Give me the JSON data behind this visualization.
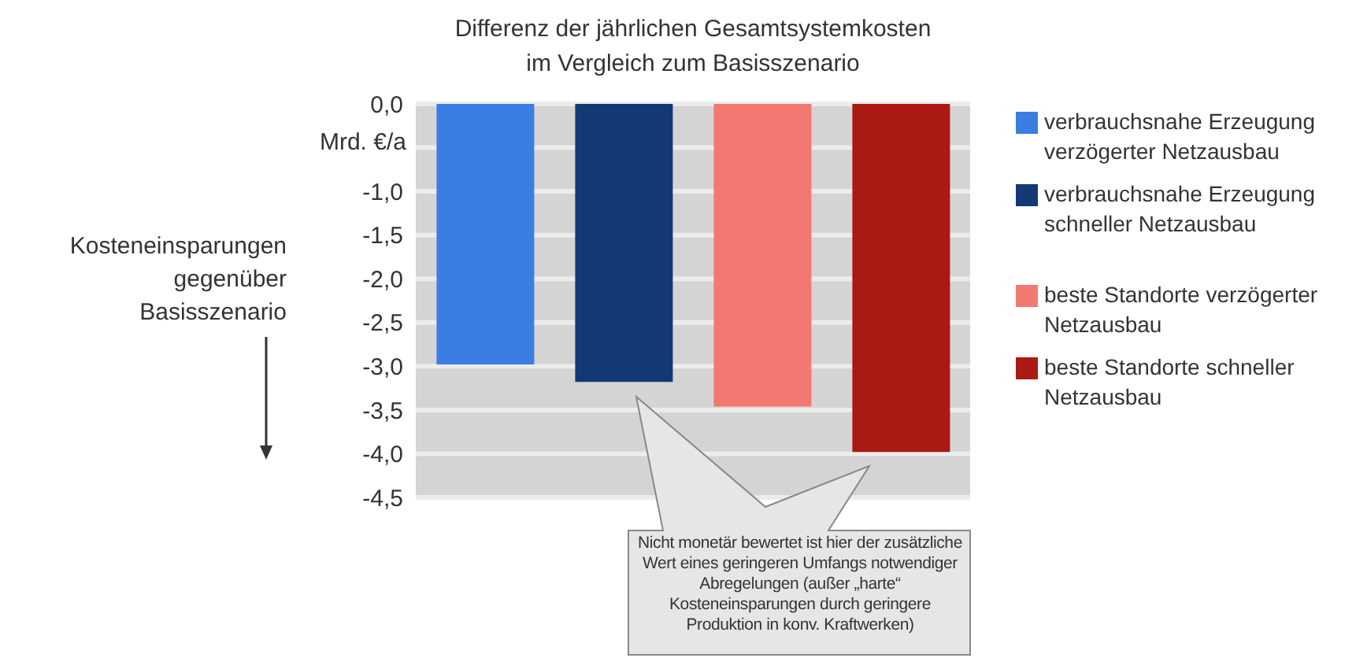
{
  "chart_data": {
    "type": "bar",
    "title": "Differenz der jährlichen Gesamtsystemkosten im Vergleich zum Basisszenario",
    "ylabel": "Mrd. €/a",
    "categories": [
      null,
      null,
      null,
      null
    ],
    "series": [
      {
        "name": "verbrauchsnahe Erzeugung verzögerter Netzausbau",
        "color": "#3a7de3",
        "values": [
          -2.98,
          null,
          null,
          null
        ]
      },
      {
        "name": "verbrauchsnahe Erzeugung schneller Netzausbau",
        "color": "#133975",
        "values": [
          null,
          -3.18,
          null,
          null
        ]
      },
      {
        "name": "beste Standorte verzögerter Netzausbau",
        "color": "#f27971",
        "values": [
          null,
          null,
          -3.46,
          null
        ]
      },
      {
        "name": "beste Standorte schneller Netzausbau",
        "color": "#aa1913",
        "values": [
          null,
          null,
          null,
          -3.98
        ]
      }
    ],
    "ylim": [
      -4.5,
      0
    ],
    "yticks": [
      {
        "value": 0,
        "label": "0,0"
      },
      {
        "value": -0.5,
        "label": null
      },
      {
        "value": -1,
        "label": "-1,0"
      },
      {
        "value": -1.5,
        "label": "-1,5"
      },
      {
        "value": -2,
        "label": "-2,0"
      },
      {
        "value": -2.5,
        "label": "-2,5"
      },
      {
        "value": -3,
        "label": "-3,0"
      },
      {
        "value": -3.5,
        "label": "-3,5"
      },
      {
        "value": -4,
        "label": "-4,0"
      },
      {
        "value": -4.5,
        "label": "-4,5"
      }
    ],
    "grid": "y",
    "legend": "right",
    "annotations": [
      "Kosteneinsparungen gegenüber Basisszenario",
      "Nicht monetär bewertet ist hier der zusätzliche Wert eines geringeren Umfangs notwendiger Abregelungen (außer „harte“ Kosteneinsparungen durch geringere Produktion in konv. Kraftwerken)"
    ]
  }
}
